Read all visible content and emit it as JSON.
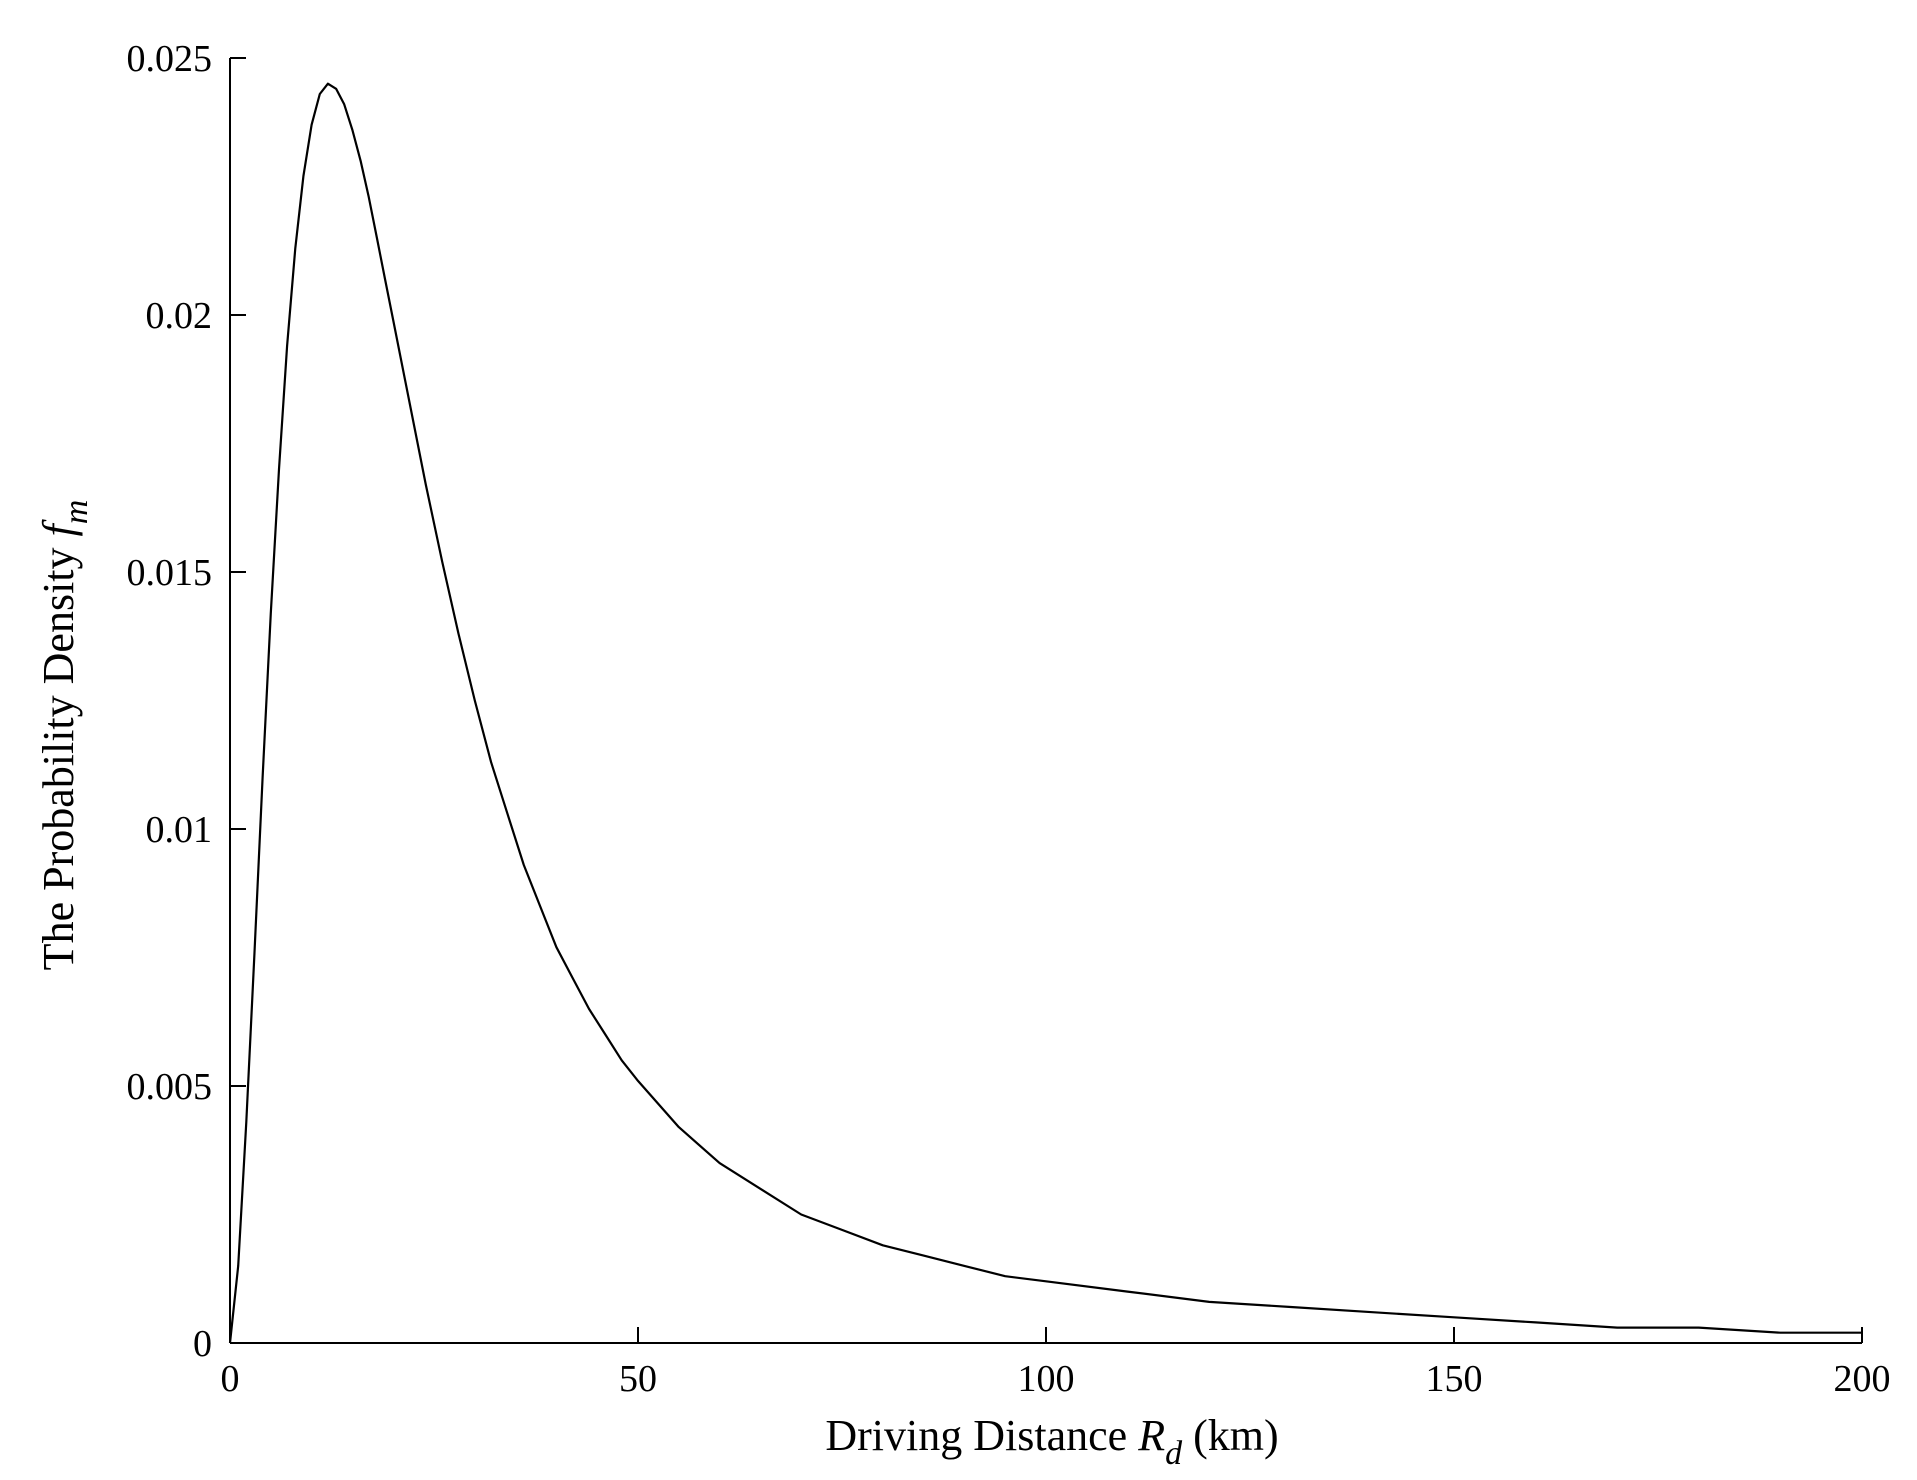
{
  "chart_data": {
    "type": "line",
    "title": "",
    "xlabel": {
      "prefix": "Driving Distance ",
      "var": "R",
      "sub": "d",
      "suffix": " (km)"
    },
    "ylabel": {
      "prefix": "The Probability Density ",
      "var": "f",
      "sub": "m"
    },
    "xlim": [
      0,
      200
    ],
    "ylim": [
      0,
      0.025
    ],
    "xticks": [
      0,
      50,
      100,
      150,
      200
    ],
    "xtick_labels": [
      "0",
      "50",
      "100",
      "150",
      "200"
    ],
    "yticks": [
      0,
      0.005,
      0.01,
      0.015,
      0.02,
      0.025
    ],
    "ytick_labels": [
      "0",
      "0.005",
      "0.01",
      "0.015",
      "0.02",
      "0.025"
    ],
    "grid": false,
    "series": [
      {
        "color": "#000000",
        "x": [
          0,
          1,
          2,
          3,
          4,
          5,
          6,
          7,
          8,
          9,
          10,
          11,
          12,
          13,
          14,
          15,
          16,
          17,
          18,
          19,
          20,
          22,
          24,
          26,
          28,
          30,
          32,
          34,
          36,
          38,
          40,
          42,
          44,
          46,
          48,
          50,
          55,
          60,
          65,
          70,
          75,
          80,
          85,
          90,
          95,
          100,
          110,
          120,
          130,
          140,
          150,
          160,
          170,
          180,
          190,
          200
        ],
        "y": [
          0,
          0.0015,
          0.0043,
          0.0076,
          0.011,
          0.0142,
          0.017,
          0.0194,
          0.0213,
          0.0227,
          0.0237,
          0.0243,
          0.0245,
          0.0244,
          0.0241,
          0.0236,
          0.023,
          0.0223,
          0.0215,
          0.0207,
          0.0199,
          0.0183,
          0.0167,
          0.0152,
          0.0138,
          0.0125,
          0.0113,
          0.0103,
          0.0093,
          0.0085,
          0.0077,
          0.0071,
          0.0065,
          0.006,
          0.0055,
          0.0051,
          0.0042,
          0.0035,
          0.003,
          0.0025,
          0.0022,
          0.0019,
          0.0017,
          0.0015,
          0.0013,
          0.0012,
          0.001,
          0.0008,
          0.0007,
          0.0006,
          0.0005,
          0.0004,
          0.0003,
          0.0003,
          0.0002,
          0.0002
        ]
      }
    ]
  }
}
